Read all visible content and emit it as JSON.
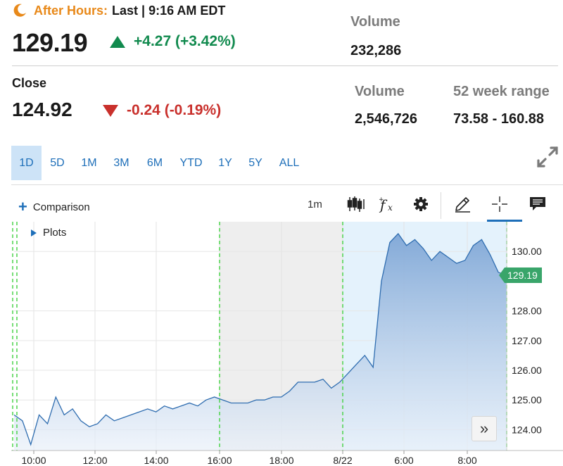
{
  "after_hours": {
    "label": "After Hours:",
    "last": "Last | 9:16 AM EDT",
    "price": "129.19",
    "change": "+4.27 (+3.42%)",
    "volume_label": "Volume",
    "volume": "232,286"
  },
  "close": {
    "label": "Close",
    "price": "124.92",
    "change": "-0.24 (-0.19%)",
    "volume_label": "Volume",
    "volume": "2,546,726",
    "range_label": "52 week range",
    "range": "73.58 - 160.88"
  },
  "ranges": [
    {
      "label": "1D",
      "active": true
    },
    {
      "label": "5D"
    },
    {
      "label": "1M"
    },
    {
      "label": "3M"
    },
    {
      "label": "6M"
    },
    {
      "label": "YTD"
    },
    {
      "label": "1Y"
    },
    {
      "label": "5Y"
    },
    {
      "label": "ALL"
    }
  ],
  "toolbar": {
    "comparison_label": "Comparison",
    "interval": "1m",
    "tools": [
      "candlestick-icon",
      "function-icon",
      "gear-icon",
      "pencil-icon",
      "crosshair-icon",
      "comment-icon"
    ]
  },
  "plots_label": "Plots",
  "current_price_tag": "129.19",
  "colors": {
    "after_hours": "#e8891a",
    "up": "#118a4e",
    "down": "#c9302c",
    "accent": "#1e6fb9",
    "line": "#2f6db0",
    "session_marker": "#4cd44c",
    "tag": "#39a56a"
  },
  "chart_data": {
    "type": "area",
    "x_ticks": [
      "10:00",
      "12:00",
      "14:00",
      "16:00",
      "18:00",
      "8/22",
      "6:00",
      "8:00"
    ],
    "y_ticks": [
      "124.00",
      "125.00",
      "126.00",
      "127.00",
      "128.00",
      "130.00"
    ],
    "ylim": [
      123.3,
      131.0
    ],
    "session_markers": [
      "16:00",
      "8/22"
    ],
    "grid": true,
    "series": [
      {
        "values": [
          124.5,
          124.3,
          123.5,
          124.5,
          124.2,
          125.1,
          124.5,
          124.7,
          124.3,
          124.1,
          124.2,
          124.5,
          124.3,
          124.4,
          124.5,
          124.6,
          124.7,
          124.6,
          124.8,
          124.7,
          124.8,
          124.9,
          124.8,
          125.0,
          125.1,
          125.0,
          124.9,
          124.9,
          124.9,
          125.0,
          125.0,
          125.1,
          125.1,
          125.3,
          125.6,
          125.6,
          125.6,
          125.7,
          125.4,
          125.6,
          125.9,
          126.2,
          126.5,
          126.1,
          129.0,
          130.3,
          130.6,
          130.2,
          130.4,
          130.1,
          129.7,
          130.0,
          129.8,
          129.6,
          129.7,
          130.2,
          130.4,
          129.9,
          129.3,
          129.19
        ]
      }
    ]
  }
}
